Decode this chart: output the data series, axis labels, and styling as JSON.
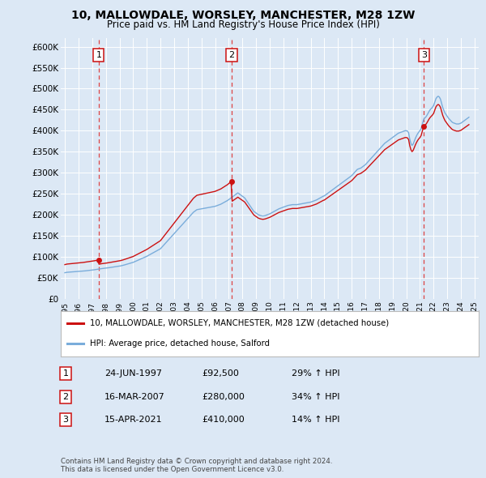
{
  "title": "10, MALLOWDALE, WORSLEY, MANCHESTER, M28 1ZW",
  "subtitle": "Price paid vs. HM Land Registry's House Price Index (HPI)",
  "background_color": "#dce8f5",
  "plot_bg_color": "#dce8f5",
  "grid_color": "#ffffff",
  "ylim": [
    0,
    620000
  ],
  "yticks": [
    0,
    50000,
    100000,
    150000,
    200000,
    250000,
    300000,
    350000,
    400000,
    450000,
    500000,
    550000,
    600000
  ],
  "ytick_labels": [
    "£0",
    "£50K",
    "£100K",
    "£150K",
    "£200K",
    "£250K",
    "£300K",
    "£350K",
    "£400K",
    "£450K",
    "£500K",
    "£550K",
    "£600K"
  ],
  "x_start_year": 1995,
  "x_end_year": 2025,
  "sale_dates_num": [
    1997.48,
    2007.21,
    2021.29
  ],
  "sale_prices": [
    92500,
    280000,
    410000
  ],
  "sale_labels": [
    "1",
    "2",
    "3"
  ],
  "sale_date_strings": [
    "24-JUN-1997",
    "16-MAR-2007",
    "15-APR-2021"
  ],
  "sale_price_strings": [
    "£92,500",
    "£280,000",
    "£410,000"
  ],
  "sale_hpi_strings": [
    "29% ↑ HPI",
    "34% ↑ HPI",
    "14% ↑ HPI"
  ],
  "hpi_line_color": "#7aaddb",
  "price_line_color": "#cc1111",
  "dashed_line_color": "#dd4444",
  "marker_color": "#cc1111",
  "legend_label_price": "10, MALLOWDALE, WORSLEY, MANCHESTER, M28 1ZW (detached house)",
  "legend_label_hpi": "HPI: Average price, detached house, Salford",
  "footnote": "Contains HM Land Registry data © Crown copyright and database right 2024.\nThis data is licensed under the Open Government Licence v3.0.",
  "hpi_data_years": [
    1995.0,
    1995.083,
    1995.167,
    1995.25,
    1995.333,
    1995.417,
    1995.5,
    1995.583,
    1995.667,
    1995.75,
    1995.833,
    1995.917,
    1996.0,
    1996.083,
    1996.167,
    1996.25,
    1996.333,
    1996.417,
    1996.5,
    1996.583,
    1996.667,
    1996.75,
    1996.833,
    1996.917,
    1997.0,
    1997.083,
    1997.167,
    1997.25,
    1997.333,
    1997.417,
    1997.5,
    1997.583,
    1997.667,
    1997.75,
    1997.833,
    1997.917,
    1998.0,
    1998.083,
    1998.167,
    1998.25,
    1998.333,
    1998.417,
    1998.5,
    1998.583,
    1998.667,
    1998.75,
    1998.833,
    1998.917,
    1999.0,
    1999.083,
    1999.167,
    1999.25,
    1999.333,
    1999.417,
    1999.5,
    1999.583,
    1999.667,
    1999.75,
    1999.833,
    1999.917,
    2000.0,
    2000.083,
    2000.167,
    2000.25,
    2000.333,
    2000.417,
    2000.5,
    2000.583,
    2000.667,
    2000.75,
    2000.833,
    2000.917,
    2001.0,
    2001.083,
    2001.167,
    2001.25,
    2001.333,
    2001.417,
    2001.5,
    2001.583,
    2001.667,
    2001.75,
    2001.833,
    2001.917,
    2002.0,
    2002.083,
    2002.167,
    2002.25,
    2002.333,
    2002.417,
    2002.5,
    2002.583,
    2002.667,
    2002.75,
    2002.833,
    2002.917,
    2003.0,
    2003.083,
    2003.167,
    2003.25,
    2003.333,
    2003.417,
    2003.5,
    2003.583,
    2003.667,
    2003.75,
    2003.833,
    2003.917,
    2004.0,
    2004.083,
    2004.167,
    2004.25,
    2004.333,
    2004.417,
    2004.5,
    2004.583,
    2004.667,
    2004.75,
    2004.833,
    2004.917,
    2005.0,
    2005.083,
    2005.167,
    2005.25,
    2005.333,
    2005.417,
    2005.5,
    2005.583,
    2005.667,
    2005.75,
    2005.833,
    2005.917,
    2006.0,
    2006.083,
    2006.167,
    2006.25,
    2006.333,
    2006.417,
    2006.5,
    2006.583,
    2006.667,
    2006.75,
    2006.833,
    2006.917,
    2007.0,
    2007.083,
    2007.167,
    2007.25,
    2007.333,
    2007.417,
    2007.5,
    2007.583,
    2007.667,
    2007.75,
    2007.833,
    2007.917,
    2008.0,
    2008.083,
    2008.167,
    2008.25,
    2008.333,
    2008.417,
    2008.5,
    2008.583,
    2008.667,
    2008.75,
    2008.833,
    2008.917,
    2009.0,
    2009.083,
    2009.167,
    2009.25,
    2009.333,
    2009.417,
    2009.5,
    2009.583,
    2009.667,
    2009.75,
    2009.833,
    2009.917,
    2010.0,
    2010.083,
    2010.167,
    2010.25,
    2010.333,
    2010.417,
    2010.5,
    2010.583,
    2010.667,
    2010.75,
    2010.833,
    2010.917,
    2011.0,
    2011.083,
    2011.167,
    2011.25,
    2011.333,
    2011.417,
    2011.5,
    2011.583,
    2011.667,
    2011.75,
    2011.833,
    2011.917,
    2012.0,
    2012.083,
    2012.167,
    2012.25,
    2012.333,
    2012.417,
    2012.5,
    2012.583,
    2012.667,
    2012.75,
    2012.833,
    2012.917,
    2013.0,
    2013.083,
    2013.167,
    2013.25,
    2013.333,
    2013.417,
    2013.5,
    2013.583,
    2013.667,
    2013.75,
    2013.833,
    2013.917,
    2014.0,
    2014.083,
    2014.167,
    2014.25,
    2014.333,
    2014.417,
    2014.5,
    2014.583,
    2014.667,
    2014.75,
    2014.833,
    2014.917,
    2015.0,
    2015.083,
    2015.167,
    2015.25,
    2015.333,
    2015.417,
    2015.5,
    2015.583,
    2015.667,
    2015.75,
    2015.833,
    2015.917,
    2016.0,
    2016.083,
    2016.167,
    2016.25,
    2016.333,
    2016.417,
    2016.5,
    2016.583,
    2016.667,
    2016.75,
    2016.833,
    2016.917,
    2017.0,
    2017.083,
    2017.167,
    2017.25,
    2017.333,
    2017.417,
    2017.5,
    2017.583,
    2017.667,
    2017.75,
    2017.833,
    2017.917,
    2018.0,
    2018.083,
    2018.167,
    2018.25,
    2018.333,
    2018.417,
    2018.5,
    2018.583,
    2018.667,
    2018.75,
    2018.833,
    2018.917,
    2019.0,
    2019.083,
    2019.167,
    2019.25,
    2019.333,
    2019.417,
    2019.5,
    2019.583,
    2019.667,
    2019.75,
    2019.833,
    2019.917,
    2020.0,
    2020.083,
    2020.167,
    2020.25,
    2020.333,
    2020.417,
    2020.5,
    2020.583,
    2020.667,
    2020.75,
    2020.833,
    2020.917,
    2021.0,
    2021.083,
    2021.167,
    2021.25,
    2021.333,
    2021.417,
    2021.5,
    2021.583,
    2021.667,
    2021.75,
    2021.833,
    2021.917,
    2022.0,
    2022.083,
    2022.167,
    2022.25,
    2022.333,
    2022.417,
    2022.5,
    2022.583,
    2022.667,
    2022.75,
    2022.833,
    2022.917,
    2023.0,
    2023.083,
    2023.167,
    2023.25,
    2023.333,
    2023.417,
    2023.5,
    2023.583,
    2023.667,
    2023.75,
    2023.833,
    2023.917,
    2024.0,
    2024.083,
    2024.167,
    2024.25,
    2024.333,
    2024.417,
    2024.5,
    2024.583
  ],
  "hpi_data_values": [
    62000,
    62500,
    63000,
    63200,
    63400,
    63600,
    63800,
    64000,
    64200,
    64400,
    64600,
    64800,
    65000,
    65200,
    65500,
    65700,
    65900,
    66200,
    66400,
    66700,
    67000,
    67300,
    67600,
    67900,
    68200,
    68600,
    69000,
    69400,
    69800,
    70200,
    70700,
    71200,
    71700,
    72000,
    72300,
    72600,
    73000,
    73300,
    73700,
    74000,
    74400,
    74800,
    75200,
    75600,
    76000,
    76400,
    76800,
    77200,
    77600,
    78200,
    78800,
    79500,
    80200,
    81000,
    81800,
    82600,
    83400,
    84200,
    85000,
    85800,
    86600,
    87800,
    89000,
    90200,
    91400,
    92600,
    93800,
    95000,
    96200,
    97400,
    98600,
    99800,
    101000,
    102500,
    104000,
    105500,
    107000,
    108500,
    110000,
    111500,
    113000,
    114500,
    116000,
    117500,
    119000,
    122000,
    125000,
    128000,
    131000,
    134000,
    137000,
    140000,
    143000,
    146000,
    149000,
    152000,
    155000,
    158000,
    161000,
    164000,
    167000,
    170000,
    173000,
    176000,
    179000,
    182000,
    185000,
    188000,
    191000,
    194000,
    197000,
    200000,
    203000,
    206000,
    208000,
    210000,
    212000,
    212500,
    213000,
    213500,
    214000,
    214500,
    215000,
    215500,
    216000,
    216500,
    217000,
    217500,
    218000,
    218500,
    219000,
    219500,
    220000,
    221000,
    222000,
    223000,
    224000,
    225000,
    226500,
    228000,
    229500,
    231000,
    232500,
    234000,
    236000,
    238000,
    240000,
    242000,
    244000,
    246000,
    248000,
    250000,
    252000,
    250000,
    248000,
    246000,
    244000,
    242000,
    240000,
    236000,
    232000,
    228000,
    224000,
    220000,
    216000,
    212000,
    208000,
    206000,
    204000,
    202000,
    200000,
    199000,
    198000,
    197500,
    197000,
    197500,
    198000,
    199000,
    200000,
    201000,
    202000,
    203500,
    205000,
    206500,
    208000,
    209500,
    211000,
    212500,
    214000,
    215000,
    216000,
    217000,
    218000,
    219000,
    220000,
    221000,
    222000,
    222500,
    223000,
    223500,
    224000,
    224000,
    224000,
    224000,
    224000,
    224500,
    225000,
    225500,
    226000,
    226500,
    227000,
    227500,
    228000,
    228500,
    229000,
    229500,
    230000,
    231000,
    232000,
    233000,
    234000,
    235000,
    236500,
    238000,
    239500,
    241000,
    242500,
    244000,
    245000,
    247000,
    249000,
    251000,
    253000,
    255000,
    257000,
    259000,
    261000,
    263000,
    265000,
    267000,
    269000,
    271000,
    273000,
    275000,
    277000,
    279000,
    281000,
    283000,
    285000,
    287000,
    289000,
    291000,
    293000,
    296000,
    299000,
    302000,
    305000,
    308000,
    309000,
    310000,
    311000,
    313000,
    315000,
    317000,
    319000,
    322000,
    325000,
    328000,
    331000,
    334000,
    337000,
    340000,
    343000,
    346000,
    349000,
    352000,
    355000,
    358000,
    361000,
    364000,
    367000,
    370000,
    372000,
    374000,
    376000,
    378000,
    380000,
    382000,
    384000,
    386000,
    388000,
    390000,
    392000,
    394000,
    395000,
    396000,
    397000,
    398000,
    399000,
    400000,
    400000,
    399000,
    395000,
    380000,
    370000,
    365000,
    368000,
    375000,
    382000,
    388000,
    393000,
    397000,
    400000,
    405000,
    415000,
    425000,
    430000,
    432000,
    436000,
    441000,
    446000,
    450000,
    453000,
    456000,
    460000,
    468000,
    476000,
    480000,
    482000,
    480000,
    475000,
    465000,
    455000,
    448000,
    442000,
    438000,
    434000,
    430000,
    427000,
    424000,
    421000,
    419000,
    418000,
    417000,
    416000,
    416000,
    416000,
    417000,
    418000,
    420000,
    422000,
    424000,
    426000,
    428000,
    430000,
    432000
  ]
}
